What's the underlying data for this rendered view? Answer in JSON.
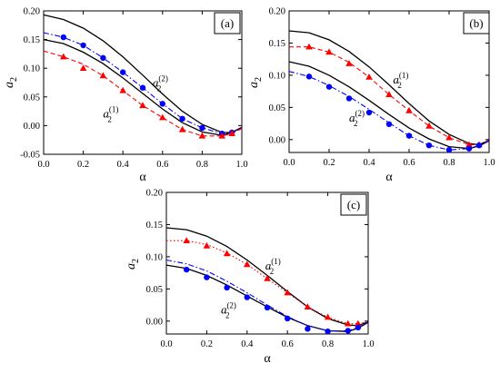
{
  "chart_data": [
    {
      "type": "line",
      "panel_label": "(a)",
      "xlabel": "α",
      "ylabel_base": "a",
      "ylabel_sub": "2",
      "xlim": [
        0.0,
        1.0
      ],
      "ylim": [
        -0.05,
        0.2
      ],
      "xticks": [
        0.0,
        0.2,
        0.4,
        0.6,
        0.8,
        1.0
      ],
      "xtick_labels": [
        "0.0",
        "0.2",
        "0.4",
        "0.6",
        "0.8",
        "1.0"
      ],
      "yticks": [
        -0.05,
        0.0,
        0.05,
        0.1,
        0.15,
        0.2
      ],
      "ytick_labels": [
        "-0.05",
        "0.00",
        "0.05",
        "0.10",
        "0.15",
        "0.20"
      ],
      "annotations": [
        {
          "base": "a",
          "sub": "2",
          "sup": "(2)",
          "x": 0.55,
          "y": 0.068
        },
        {
          "base": "a",
          "sub": "2",
          "sup": "(1)",
          "x": 0.3,
          "y": 0.014
        }
      ],
      "series": [
        {
          "style": "solid",
          "color": "#000000",
          "points": [
            [
              0.0,
              0.193
            ],
            [
              0.1,
              0.185
            ],
            [
              0.2,
              0.17
            ],
            [
              0.3,
              0.148
            ],
            [
              0.4,
              0.12
            ],
            [
              0.5,
              0.088
            ],
            [
              0.6,
              0.055
            ],
            [
              0.7,
              0.025
            ],
            [
              0.8,
              0.002
            ],
            [
              0.9,
              -0.012
            ],
            [
              0.95,
              -0.012
            ],
            [
              1.0,
              -0.003
            ]
          ]
        },
        {
          "style": "solid",
          "color": "#000000",
          "points": [
            [
              0.0,
              0.15
            ],
            [
              0.1,
              0.143
            ],
            [
              0.2,
              0.128
            ],
            [
              0.3,
              0.108
            ],
            [
              0.4,
              0.083
            ],
            [
              0.5,
              0.056
            ],
            [
              0.6,
              0.029
            ],
            [
              0.7,
              0.005
            ],
            [
              0.8,
              -0.011
            ],
            [
              0.9,
              -0.017
            ],
            [
              0.95,
              -0.012
            ],
            [
              1.0,
              -0.003
            ]
          ]
        },
        {
          "style": "dashdot",
          "color": "#0000ff",
          "marker": "circle",
          "points": [
            [
              0.0,
              0.162
            ],
            [
              0.1,
              0.154
            ],
            [
              0.2,
              0.14
            ],
            [
              0.3,
              0.118
            ],
            [
              0.4,
              0.093
            ],
            [
              0.5,
              0.066
            ],
            [
              0.6,
              0.038
            ],
            [
              0.7,
              0.012
            ],
            [
              0.8,
              -0.004
            ],
            [
              0.9,
              -0.014
            ],
            [
              0.95,
              -0.012
            ],
            [
              1.0,
              -0.003
            ]
          ],
          "markers": [
            [
              0.1,
              0.154
            ],
            [
              0.2,
              0.14
            ],
            [
              0.3,
              0.118
            ],
            [
              0.4,
              0.093
            ],
            [
              0.5,
              0.066
            ],
            [
              0.6,
              0.038
            ],
            [
              0.7,
              0.012
            ],
            [
              0.8,
              -0.004
            ],
            [
              0.9,
              -0.014
            ],
            [
              0.95,
              -0.012
            ]
          ]
        },
        {
          "style": "dash",
          "color": "#ff0000",
          "marker": "triangle",
          "points": [
            [
              0.0,
              0.13
            ],
            [
              0.1,
              0.12
            ],
            [
              0.2,
              0.107
            ],
            [
              0.3,
              0.087
            ],
            [
              0.4,
              0.061
            ],
            [
              0.5,
              0.035
            ],
            [
              0.6,
              0.014
            ],
            [
              0.7,
              -0.007
            ],
            [
              0.8,
              -0.018
            ],
            [
              0.9,
              -0.018
            ],
            [
              0.95,
              -0.014
            ],
            [
              1.0,
              -0.005
            ]
          ],
          "markers": [
            [
              0.1,
              0.12
            ],
            [
              0.2,
              0.1
            ],
            [
              0.3,
              0.087
            ],
            [
              0.4,
              0.061
            ],
            [
              0.5,
              0.035
            ],
            [
              0.6,
              0.014
            ],
            [
              0.7,
              -0.007
            ],
            [
              0.8,
              -0.018
            ],
            [
              0.9,
              -0.018
            ],
            [
              0.95,
              -0.014
            ]
          ]
        }
      ]
    },
    {
      "type": "line",
      "panel_label": "(b)",
      "xlabel": "α",
      "ylabel_base": "a",
      "ylabel_sub": "2",
      "xlim": [
        0.0,
        1.0
      ],
      "ylim": [
        -0.02,
        0.2
      ],
      "xticks": [
        0.0,
        0.2,
        0.4,
        0.6,
        0.8,
        1.0
      ],
      "xtick_labels": [
        "0.0",
        "0.2",
        "0.4",
        "0.6",
        "0.8",
        "1.0"
      ],
      "yticks": [
        0.0,
        0.05,
        0.1,
        0.15,
        0.2
      ],
      "ytick_labels": [
        "0.00",
        "0.05",
        "0.10",
        "0.15",
        "0.20"
      ],
      "annotations": [
        {
          "base": "a",
          "sub": "2",
          "sup": "(1)",
          "x": 0.52,
          "y": 0.087
        },
        {
          "base": "a",
          "sub": "2",
          "sup": "(2)",
          "x": 0.3,
          "y": 0.028
        }
      ],
      "series": [
        {
          "style": "solid",
          "color": "#000000",
          "points": [
            [
              0.0,
              0.169
            ],
            [
              0.1,
              0.166
            ],
            [
              0.2,
              0.155
            ],
            [
              0.3,
              0.137
            ],
            [
              0.4,
              0.113
            ],
            [
              0.5,
              0.085
            ],
            [
              0.6,
              0.056
            ],
            [
              0.7,
              0.029
            ],
            [
              0.8,
              0.008
            ],
            [
              0.9,
              -0.006
            ],
            [
              0.95,
              -0.008
            ],
            [
              1.0,
              -0.001
            ]
          ]
        },
        {
          "style": "solid",
          "color": "#000000",
          "points": [
            [
              0.0,
              0.121
            ],
            [
              0.1,
              0.114
            ],
            [
              0.2,
              0.1
            ],
            [
              0.3,
              0.082
            ],
            [
              0.4,
              0.061
            ],
            [
              0.5,
              0.039
            ],
            [
              0.6,
              0.018
            ],
            [
              0.7,
              0.001
            ],
            [
              0.8,
              -0.011
            ],
            [
              0.9,
              -0.014
            ],
            [
              0.95,
              -0.01
            ],
            [
              1.0,
              -0.002
            ]
          ]
        },
        {
          "style": "dash",
          "color": "#ff0000",
          "marker": "triangle",
          "points": [
            [
              0.0,
              0.144
            ],
            [
              0.1,
              0.144
            ],
            [
              0.2,
              0.136
            ],
            [
              0.3,
              0.12
            ],
            [
              0.4,
              0.097
            ],
            [
              0.5,
              0.07
            ],
            [
              0.6,
              0.045
            ],
            [
              0.7,
              0.021
            ],
            [
              0.8,
              0.003
            ],
            [
              0.9,
              -0.008
            ],
            [
              0.95,
              -0.008
            ],
            [
              1.0,
              -0.001
            ]
          ],
          "markers": [
            [
              0.1,
              0.144
            ],
            [
              0.2,
              0.136
            ],
            [
              0.3,
              0.118
            ],
            [
              0.4,
              0.097
            ],
            [
              0.5,
              0.07
            ],
            [
              0.6,
              0.045
            ],
            [
              0.7,
              0.021
            ],
            [
              0.8,
              0.003
            ],
            [
              0.9,
              -0.008
            ],
            [
              0.95,
              -0.008
            ]
          ]
        },
        {
          "style": "dashdot",
          "color": "#0000ff",
          "marker": "circle",
          "points": [
            [
              0.0,
              0.106
            ],
            [
              0.1,
              0.098
            ],
            [
              0.2,
              0.084
            ],
            [
              0.3,
              0.067
            ],
            [
              0.4,
              0.047
            ],
            [
              0.5,
              0.026
            ],
            [
              0.6,
              0.006
            ],
            [
              0.7,
              -0.009
            ],
            [
              0.8,
              -0.016
            ],
            [
              0.9,
              -0.014
            ],
            [
              0.95,
              -0.009
            ],
            [
              1.0,
              -0.002
            ]
          ],
          "markers": [
            [
              0.1,
              0.098
            ],
            [
              0.2,
              0.082
            ],
            [
              0.3,
              0.064
            ],
            [
              0.4,
              0.042
            ],
            [
              0.5,
              0.024
            ],
            [
              0.6,
              0.006
            ],
            [
              0.7,
              -0.009
            ],
            [
              0.8,
              -0.016
            ],
            [
              0.9,
              -0.014
            ],
            [
              0.95,
              -0.009
            ]
          ]
        }
      ]
    },
    {
      "type": "line",
      "panel_label": "(c)",
      "xlabel": "α",
      "ylabel_base": "a",
      "ylabel_sub": "2",
      "xlim": [
        0.0,
        1.0
      ],
      "ylim": [
        -0.02,
        0.2
      ],
      "xticks": [
        0.0,
        0.2,
        0.4,
        0.6,
        0.8,
        1.0
      ],
      "xtick_labels": [
        "0.0",
        "0.2",
        "0.4",
        "0.6",
        "0.8",
        "1.0"
      ],
      "yticks": [
        0.0,
        0.05,
        0.1,
        0.15,
        0.2
      ],
      "ytick_labels": [
        "0.00",
        "0.05",
        "0.10",
        "0.15",
        "0.20"
      ],
      "annotations": [
        {
          "base": "a",
          "sub": "2",
          "sup": "(1)",
          "x": 0.49,
          "y": 0.08
        },
        {
          "base": "a",
          "sub": "2",
          "sup": "(2)",
          "x": 0.27,
          "y": 0.012
        }
      ],
      "series": [
        {
          "style": "solid",
          "color": "#000000",
          "points": [
            [
              0.0,
              0.145
            ],
            [
              0.1,
              0.142
            ],
            [
              0.2,
              0.132
            ],
            [
              0.3,
              0.116
            ],
            [
              0.4,
              0.095
            ],
            [
              0.5,
              0.071
            ],
            [
              0.6,
              0.046
            ],
            [
              0.7,
              0.022
            ],
            [
              0.8,
              0.004
            ],
            [
              0.9,
              -0.006
            ],
            [
              0.95,
              -0.007
            ],
            [
              1.0,
              -0.001
            ]
          ]
        },
        {
          "style": "solid",
          "color": "#000000",
          "points": [
            [
              0.0,
              0.087
            ],
            [
              0.1,
              0.082
            ],
            [
              0.2,
              0.071
            ],
            [
              0.3,
              0.056
            ],
            [
              0.4,
              0.039
            ],
            [
              0.5,
              0.022
            ],
            [
              0.6,
              0.006
            ],
            [
              0.7,
              -0.007
            ],
            [
              0.8,
              -0.015
            ],
            [
              0.9,
              -0.016
            ],
            [
              0.95,
              -0.011
            ],
            [
              1.0,
              -0.002
            ]
          ]
        },
        {
          "style": "dot",
          "color": "#ff0000",
          "marker": "triangle",
          "points": [
            [
              0.0,
              0.125
            ],
            [
              0.1,
              0.125
            ],
            [
              0.2,
              0.119
            ],
            [
              0.3,
              0.106
            ],
            [
              0.4,
              0.088
            ],
            [
              0.5,
              0.066
            ],
            [
              0.6,
              0.044
            ],
            [
              0.7,
              0.022
            ],
            [
              0.8,
              0.006
            ],
            [
              0.9,
              -0.004
            ],
            [
              0.95,
              -0.004
            ],
            [
              1.0,
              -0.001
            ]
          ],
          "markers": [
            [
              0.1,
              0.125
            ],
            [
              0.2,
              0.117
            ],
            [
              0.3,
              0.105
            ],
            [
              0.4,
              0.088
            ],
            [
              0.5,
              0.066
            ],
            [
              0.6,
              0.044
            ],
            [
              0.7,
              0.022
            ],
            [
              0.8,
              0.006
            ],
            [
              0.9,
              -0.004
            ],
            [
              0.95,
              -0.004
            ]
          ]
        },
        {
          "style": "dashdot",
          "color": "#0000ff",
          "marker": "circle",
          "points": [
            [
              0.0,
              0.095
            ],
            [
              0.1,
              0.089
            ],
            [
              0.2,
              0.078
            ],
            [
              0.3,
              0.062
            ],
            [
              0.4,
              0.044
            ],
            [
              0.5,
              0.025
            ],
            [
              0.6,
              0.007
            ],
            [
              0.7,
              -0.007
            ],
            [
              0.8,
              -0.015
            ],
            [
              0.9,
              -0.015
            ],
            [
              0.95,
              -0.01
            ],
            [
              1.0,
              -0.002
            ]
          ],
          "markers": [
            [
              0.1,
              0.08
            ],
            [
              0.2,
              0.068
            ],
            [
              0.3,
              0.052
            ],
            [
              0.4,
              0.037
            ],
            [
              0.5,
              0.021
            ],
            [
              0.6,
              0.004
            ],
            [
              0.7,
              -0.012
            ],
            [
              0.8,
              -0.016
            ],
            [
              0.9,
              -0.015
            ],
            [
              0.95,
              -0.01
            ]
          ]
        }
      ]
    }
  ]
}
